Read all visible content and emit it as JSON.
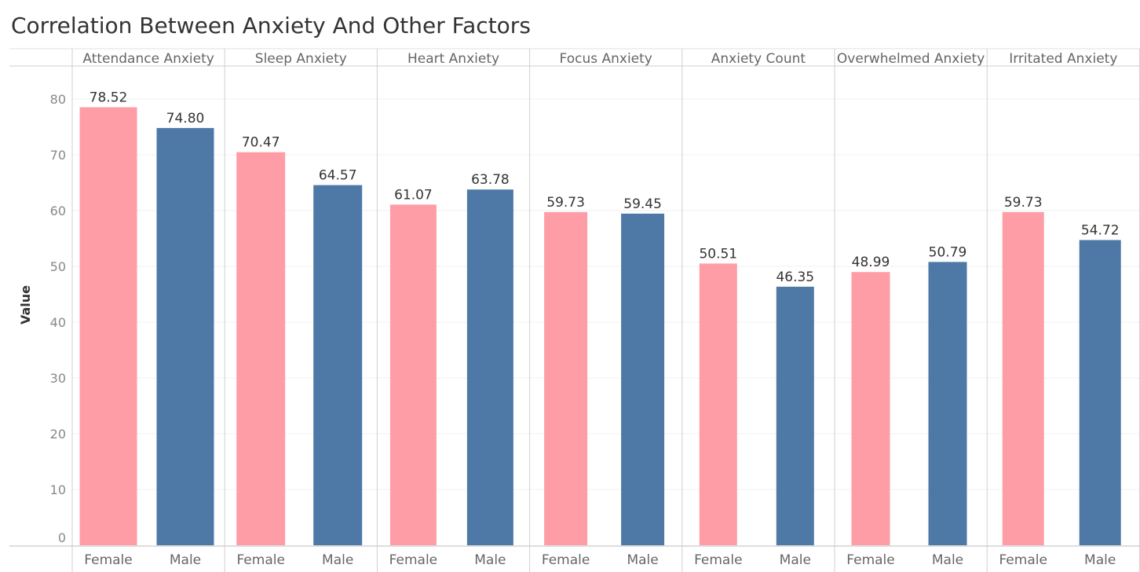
{
  "chart_data": {
    "type": "bar",
    "title": "Correlation Between Anxiety And Other Factors",
    "xlabel": "",
    "ylabel": "Value",
    "ylim": [
      0,
      86
    ],
    "yticks": [
      0,
      10,
      20,
      30,
      40,
      50,
      60,
      70,
      80
    ],
    "grid": true,
    "groups": [
      "Attendance Anxiety",
      "Sleep Anxiety",
      "Heart Anxiety",
      "Focus Anxiety",
      "Anxiety Count",
      "Overwhelmed Anxiety",
      "Irritated Anxiety"
    ],
    "categories": [
      "Female",
      "Male"
    ],
    "values": [
      [
        78.52,
        74.8
      ],
      [
        70.47,
        64.57
      ],
      [
        61.07,
        63.78
      ],
      [
        59.73,
        59.45
      ],
      [
        50.51,
        46.35
      ],
      [
        48.99,
        50.79
      ],
      [
        59.73,
        54.72
      ]
    ],
    "data_labels": [
      [
        "78.52",
        "74.80"
      ],
      [
        "70.47",
        "64.57"
      ],
      [
        "61.07",
        "63.78"
      ],
      [
        "59.73",
        "59.45"
      ],
      [
        "50.51",
        "46.35"
      ],
      [
        "48.99",
        "50.79"
      ],
      [
        "59.73",
        "54.72"
      ]
    ],
    "colors": {
      "Female": "#FF9DA7",
      "Male": "#4E79A7"
    }
  }
}
